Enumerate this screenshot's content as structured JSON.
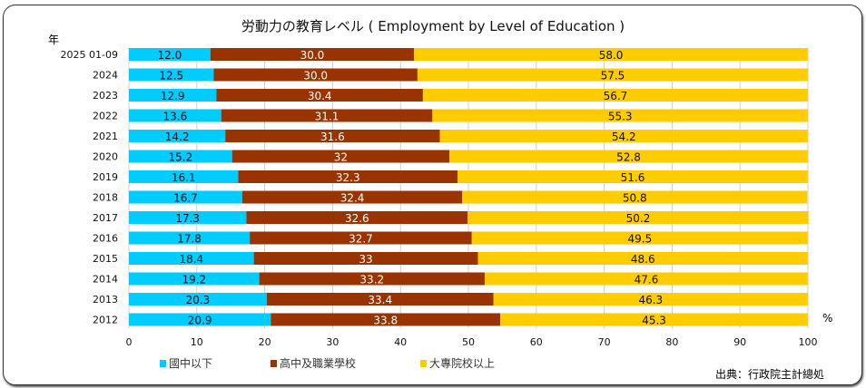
{
  "chart_data": {
    "type": "bar",
    "stacked": true,
    "orientation": "horizontal",
    "title": "労動力の教育レベル ( Employment by Level of Education )",
    "ylabel": "年",
    "xlabel": "%",
    "xlim": [
      0,
      100
    ],
    "xticks": [
      "0",
      "10",
      "20",
      "30",
      "40",
      "50",
      "60",
      "70",
      "80",
      "90",
      "100"
    ],
    "grid": true,
    "legend_position": "bottom",
    "categories": [
      "2025 01-09",
      "2024",
      "2023",
      "2022",
      "2021",
      "2020",
      "2019",
      "2018",
      "2017",
      "2016",
      "2015",
      "2014",
      "2013",
      "2012"
    ],
    "series": [
      {
        "name": "國中以下",
        "color": "#00CCFF",
        "labels": [
          "12.0",
          "12.5",
          "12.9",
          "13.6",
          "14.2",
          "15.2",
          "16.1",
          "16.7",
          "17.3",
          "17.8",
          "18.4",
          "19.2",
          "20.3",
          "20.9"
        ],
        "values": [
          12.0,
          12.5,
          12.9,
          13.6,
          14.2,
          15.2,
          16.1,
          16.7,
          17.3,
          17.8,
          18.4,
          19.2,
          20.3,
          20.9
        ],
        "label_color": "#111"
      },
      {
        "name": "高中及職業學校",
        "color": "#993300",
        "labels": [
          "30.0",
          "30.0",
          "30.4",
          "31.1",
          "31.6",
          "32",
          "32.3",
          "32.4",
          "32.6",
          "32.7",
          "33",
          "33.2",
          "33.4",
          "33.8"
        ],
        "values": [
          30.0,
          30.0,
          30.4,
          31.1,
          31.6,
          32,
          32.3,
          32.4,
          32.6,
          32.7,
          33,
          33.2,
          33.4,
          33.8
        ],
        "label_color": "#fff"
      },
      {
        "name": "大專院校以上",
        "color": "#FFCC00",
        "labels": [
          "58.0",
          "57.5",
          "56.7",
          "55.3",
          "54.2",
          "52.8",
          "51.6",
          "50.8",
          "50.2",
          "49.5",
          "48.6",
          "47.6",
          "46.3",
          "45.3"
        ],
        "values": [
          58.0,
          57.5,
          56.7,
          55.3,
          54.2,
          52.8,
          51.6,
          50.8,
          50.2,
          49.5,
          48.6,
          47.6,
          46.3,
          45.3
        ],
        "label_color": "#111"
      }
    ],
    "source": "出典：行政院主計總処"
  }
}
